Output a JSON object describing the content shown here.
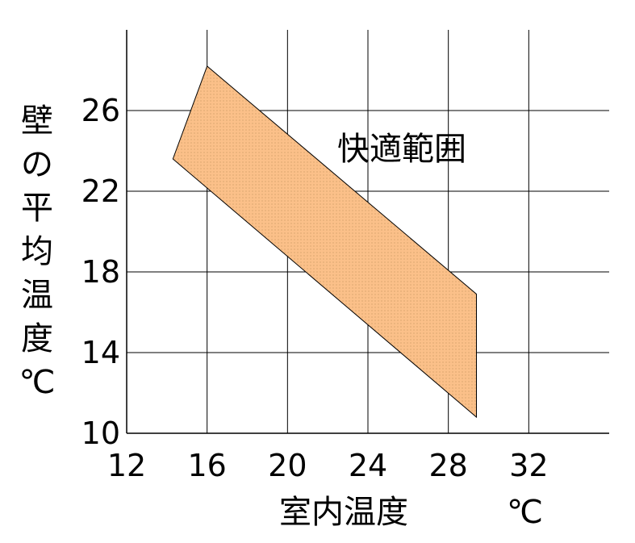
{
  "chart_data": {
    "type": "area",
    "title": "",
    "xlabel": "室内温度",
    "x_unit": "℃",
    "ylabel": "壁の平均温度",
    "y_unit": "℃",
    "xlim": [
      12,
      36
    ],
    "ylim": [
      10,
      30
    ],
    "x_ticks": [
      "12",
      "16",
      "20",
      "24",
      "28",
      "32"
    ],
    "y_ticks": [
      "10",
      "14",
      "18",
      "22",
      "26"
    ],
    "grid": true,
    "annotations": [
      {
        "text": "快適範囲",
        "x": 26,
        "y": 24.3
      }
    ],
    "series": [
      {
        "name": "快適範囲",
        "polygon": [
          {
            "x": 14.3,
            "y": 23.6
          },
          {
            "x": 16.0,
            "y": 28.2
          },
          {
            "x": 29.4,
            "y": 16.9
          },
          {
            "x": 29.4,
            "y": 10.8
          }
        ],
        "color": "#fbc089"
      }
    ]
  }
}
